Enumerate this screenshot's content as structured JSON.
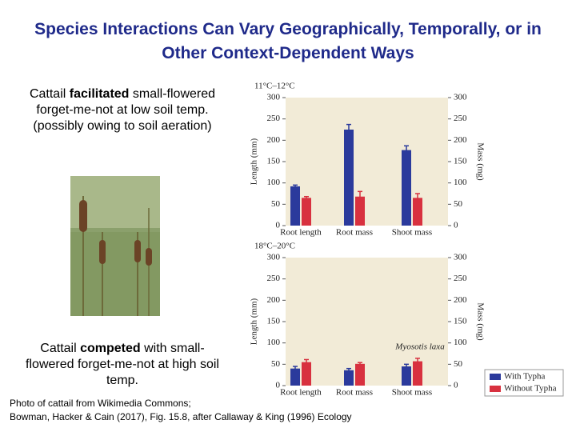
{
  "title": "Species Interactions Can Vary Geographically, Temporally, or in Other Context-Dependent Ways",
  "text_1": [
    "Cattail ",
    "facilitated",
    " small-flowered forget-me-not at low soil temp. (possibly owing to soil aeration)"
  ],
  "text_2": [
    "Cattail ",
    "competed",
    " with small-flowered forget-me-not at high soil temp."
  ],
  "credit": [
    "Photo of cattail from Wikimedia Commons;",
    "Bowman, Hacker & Cain (2017), Fig. 15.8, after Callaway & King (1996) Ecology"
  ],
  "chart_data": [
    {
      "type": "bar",
      "subtitle": "11°C–12°C",
      "y_label": "Length (mm)",
      "y2_label": "Mass (mg)",
      "categories": [
        "Root length",
        "Root mass",
        "Shoot mass"
      ],
      "series": [
        {
          "color": "#2b3a9c",
          "values": [
            92,
            225,
            177
          ],
          "errors": [
            3,
            12,
            10
          ]
        },
        {
          "color": "#d8313f",
          "values": [
            65,
            68,
            65
          ],
          "errors": [
            3,
            12,
            10
          ]
        }
      ],
      "ylim": [
        0,
        300
      ],
      "yticks": [
        0,
        50,
        100,
        150,
        200,
        250,
        300
      ],
      "y2lim": [
        0,
        300
      ],
      "y2ticks": [
        0,
        50,
        100,
        150,
        200,
        250,
        300
      ]
    },
    {
      "type": "bar",
      "subtitle": "18°C–20°C",
      "y_label": "Length (mm)",
      "y2_label": "Mass (mg)",
      "annotation": "Myosotis laxa",
      "categories": [
        "Root length",
        "Root mass",
        "Shoot mass"
      ],
      "series": [
        {
          "name": "With Typha",
          "color": "#2b3a9c",
          "values": [
            40,
            36,
            45
          ],
          "errors": [
            5,
            4,
            5
          ]
        },
        {
          "name": "Without Typha",
          "color": "#d8313f",
          "values": [
            55,
            51,
            57
          ],
          "errors": [
            6,
            3,
            7
          ]
        }
      ],
      "ylim": [
        0,
        300
      ],
      "yticks": [
        0,
        50,
        100,
        150,
        200,
        250,
        300
      ],
      "y2lim": [
        0,
        300
      ],
      "y2ticks": [
        0,
        50,
        100,
        150,
        200,
        250,
        300
      ]
    }
  ]
}
